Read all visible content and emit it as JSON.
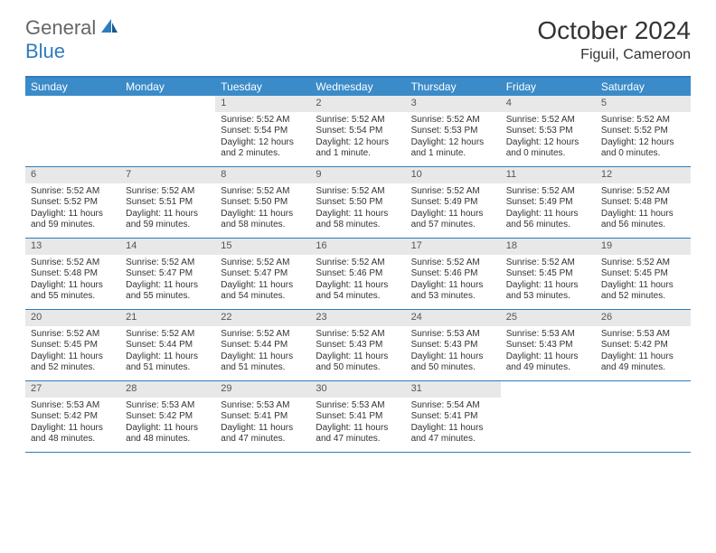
{
  "logo": {
    "general": "General",
    "blue": "Blue"
  },
  "title": "October 2024",
  "location": "Figuil, Cameroon",
  "colors": {
    "header_bar": "#3b8bc9",
    "border": "#2f7bbf",
    "daynum_bg": "#e8e8e8",
    "text": "#333333",
    "logo_gray": "#666666",
    "logo_blue": "#2f7bbf"
  },
  "weekdays": [
    "Sunday",
    "Monday",
    "Tuesday",
    "Wednesday",
    "Thursday",
    "Friday",
    "Saturday"
  ],
  "weeks": [
    [
      null,
      null,
      {
        "n": "1",
        "sr": "Sunrise: 5:52 AM",
        "ss": "Sunset: 5:54 PM",
        "dl": "Daylight: 12 hours and 2 minutes."
      },
      {
        "n": "2",
        "sr": "Sunrise: 5:52 AM",
        "ss": "Sunset: 5:54 PM",
        "dl": "Daylight: 12 hours and 1 minute."
      },
      {
        "n": "3",
        "sr": "Sunrise: 5:52 AM",
        "ss": "Sunset: 5:53 PM",
        "dl": "Daylight: 12 hours and 1 minute."
      },
      {
        "n": "4",
        "sr": "Sunrise: 5:52 AM",
        "ss": "Sunset: 5:53 PM",
        "dl": "Daylight: 12 hours and 0 minutes."
      },
      {
        "n": "5",
        "sr": "Sunrise: 5:52 AM",
        "ss": "Sunset: 5:52 PM",
        "dl": "Daylight: 12 hours and 0 minutes."
      }
    ],
    [
      {
        "n": "6",
        "sr": "Sunrise: 5:52 AM",
        "ss": "Sunset: 5:52 PM",
        "dl": "Daylight: 11 hours and 59 minutes."
      },
      {
        "n": "7",
        "sr": "Sunrise: 5:52 AM",
        "ss": "Sunset: 5:51 PM",
        "dl": "Daylight: 11 hours and 59 minutes."
      },
      {
        "n": "8",
        "sr": "Sunrise: 5:52 AM",
        "ss": "Sunset: 5:50 PM",
        "dl": "Daylight: 11 hours and 58 minutes."
      },
      {
        "n": "9",
        "sr": "Sunrise: 5:52 AM",
        "ss": "Sunset: 5:50 PM",
        "dl": "Daylight: 11 hours and 58 minutes."
      },
      {
        "n": "10",
        "sr": "Sunrise: 5:52 AM",
        "ss": "Sunset: 5:49 PM",
        "dl": "Daylight: 11 hours and 57 minutes."
      },
      {
        "n": "11",
        "sr": "Sunrise: 5:52 AM",
        "ss": "Sunset: 5:49 PM",
        "dl": "Daylight: 11 hours and 56 minutes."
      },
      {
        "n": "12",
        "sr": "Sunrise: 5:52 AM",
        "ss": "Sunset: 5:48 PM",
        "dl": "Daylight: 11 hours and 56 minutes."
      }
    ],
    [
      {
        "n": "13",
        "sr": "Sunrise: 5:52 AM",
        "ss": "Sunset: 5:48 PM",
        "dl": "Daylight: 11 hours and 55 minutes."
      },
      {
        "n": "14",
        "sr": "Sunrise: 5:52 AM",
        "ss": "Sunset: 5:47 PM",
        "dl": "Daylight: 11 hours and 55 minutes."
      },
      {
        "n": "15",
        "sr": "Sunrise: 5:52 AM",
        "ss": "Sunset: 5:47 PM",
        "dl": "Daylight: 11 hours and 54 minutes."
      },
      {
        "n": "16",
        "sr": "Sunrise: 5:52 AM",
        "ss": "Sunset: 5:46 PM",
        "dl": "Daylight: 11 hours and 54 minutes."
      },
      {
        "n": "17",
        "sr": "Sunrise: 5:52 AM",
        "ss": "Sunset: 5:46 PM",
        "dl": "Daylight: 11 hours and 53 minutes."
      },
      {
        "n": "18",
        "sr": "Sunrise: 5:52 AM",
        "ss": "Sunset: 5:45 PM",
        "dl": "Daylight: 11 hours and 53 minutes."
      },
      {
        "n": "19",
        "sr": "Sunrise: 5:52 AM",
        "ss": "Sunset: 5:45 PM",
        "dl": "Daylight: 11 hours and 52 minutes."
      }
    ],
    [
      {
        "n": "20",
        "sr": "Sunrise: 5:52 AM",
        "ss": "Sunset: 5:45 PM",
        "dl": "Daylight: 11 hours and 52 minutes."
      },
      {
        "n": "21",
        "sr": "Sunrise: 5:52 AM",
        "ss": "Sunset: 5:44 PM",
        "dl": "Daylight: 11 hours and 51 minutes."
      },
      {
        "n": "22",
        "sr": "Sunrise: 5:52 AM",
        "ss": "Sunset: 5:44 PM",
        "dl": "Daylight: 11 hours and 51 minutes."
      },
      {
        "n": "23",
        "sr": "Sunrise: 5:52 AM",
        "ss": "Sunset: 5:43 PM",
        "dl": "Daylight: 11 hours and 50 minutes."
      },
      {
        "n": "24",
        "sr": "Sunrise: 5:53 AM",
        "ss": "Sunset: 5:43 PM",
        "dl": "Daylight: 11 hours and 50 minutes."
      },
      {
        "n": "25",
        "sr": "Sunrise: 5:53 AM",
        "ss": "Sunset: 5:43 PM",
        "dl": "Daylight: 11 hours and 49 minutes."
      },
      {
        "n": "26",
        "sr": "Sunrise: 5:53 AM",
        "ss": "Sunset: 5:42 PM",
        "dl": "Daylight: 11 hours and 49 minutes."
      }
    ],
    [
      {
        "n": "27",
        "sr": "Sunrise: 5:53 AM",
        "ss": "Sunset: 5:42 PM",
        "dl": "Daylight: 11 hours and 48 minutes."
      },
      {
        "n": "28",
        "sr": "Sunrise: 5:53 AM",
        "ss": "Sunset: 5:42 PM",
        "dl": "Daylight: 11 hours and 48 minutes."
      },
      {
        "n": "29",
        "sr": "Sunrise: 5:53 AM",
        "ss": "Sunset: 5:41 PM",
        "dl": "Daylight: 11 hours and 47 minutes."
      },
      {
        "n": "30",
        "sr": "Sunrise: 5:53 AM",
        "ss": "Sunset: 5:41 PM",
        "dl": "Daylight: 11 hours and 47 minutes."
      },
      {
        "n": "31",
        "sr": "Sunrise: 5:54 AM",
        "ss": "Sunset: 5:41 PM",
        "dl": "Daylight: 11 hours and 47 minutes."
      },
      null,
      null
    ]
  ]
}
